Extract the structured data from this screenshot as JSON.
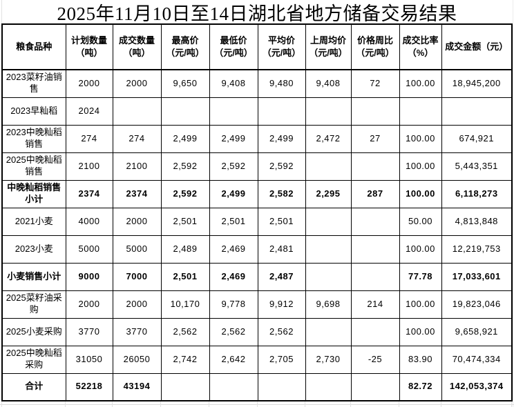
{
  "title": "2025年11月10日至14日湖北省地方储备交易结果",
  "colors": {
    "text": "#000000",
    "table_border": "#000000",
    "background": "#ffffff",
    "sheet_gridline": "#dcdcdc"
  },
  "table": {
    "headers": [
      {
        "key": "grain-type",
        "line1": "粮食品种",
        "line2": ""
      },
      {
        "key": "planned-qty",
        "line1": "计划数量",
        "line2": "（吨）"
      },
      {
        "key": "deal-qty",
        "line1": "成交数量",
        "line2": "（吨）"
      },
      {
        "key": "max-price",
        "line1": "最高价",
        "line2": "（元/吨）"
      },
      {
        "key": "min-price",
        "line1": "最低价",
        "line2": "（元/吨）"
      },
      {
        "key": "avg-price",
        "line1": "平均价",
        "line2": "（元/吨）"
      },
      {
        "key": "last-week-avg-price",
        "line1": "上周均价",
        "line2": "（元/吨）"
      },
      {
        "key": "price-week-change",
        "line1": "价格周比",
        "line2": "（元/吨）"
      },
      {
        "key": "deal-ratio",
        "line1": "成交比率",
        "line2": "（%）"
      },
      {
        "key": "deal-amount",
        "line1": "成交金额（元）",
        "line2": ""
      }
    ],
    "rows": [
      {
        "bold": false,
        "cells": [
          "2023菜籽油销售",
          "2000",
          "2000",
          "9,650",
          "9,408",
          "9,480",
          "9,408",
          "72",
          "100.00",
          "18,945,200"
        ]
      },
      {
        "bold": false,
        "cells": [
          "2023早籼稻",
          "2024",
          "",
          "",
          "",
          "",
          "",
          "",
          "",
          ""
        ]
      },
      {
        "bold": false,
        "cells": [
          "2023中晚籼稻销售",
          "274",
          "274",
          "2,499",
          "2,499",
          "2,499",
          "2,472",
          "27",
          "100.00",
          "674,921"
        ]
      },
      {
        "bold": false,
        "cells": [
          "2025中晚籼稻销售",
          "2100",
          "2100",
          "2,592",
          "2,592",
          "2,592",
          "",
          "",
          "100.00",
          "5,443,351"
        ]
      },
      {
        "bold": true,
        "cells": [
          "中晚籼稻销售小计",
          "2374",
          "2374",
          "2,592",
          "2,499",
          "2,582",
          "2,295",
          "287",
          "100.00",
          "6,118,273"
        ]
      },
      {
        "bold": false,
        "cells": [
          "2021小麦",
          "4000",
          "2000",
          "2,501",
          "2,501",
          "2,501",
          "",
          "",
          "50.00",
          "4,813,848"
        ]
      },
      {
        "bold": false,
        "cells": [
          "2023小麦",
          "5000",
          "5000",
          "2,489",
          "2,469",
          "2,481",
          "",
          "",
          "100.00",
          "12,219,753"
        ]
      },
      {
        "bold": true,
        "cells": [
          "小麦销售小计",
          "9000",
          "7000",
          "2,501",
          "2,469",
          "2,487",
          "",
          "",
          "77.78",
          "17,033,601"
        ]
      },
      {
        "bold": false,
        "cells": [
          "2025菜籽油采购",
          "2000",
          "2000",
          "10,170",
          "9,778",
          "9,912",
          "9,698",
          "214",
          "100.00",
          "19,823,046"
        ]
      },
      {
        "bold": false,
        "cells": [
          "2025小麦采购",
          "3770",
          "3770",
          "2,562",
          "2,562",
          "2,562",
          "",
          "",
          "100.00",
          "9,658,921"
        ]
      },
      {
        "bold": false,
        "cells": [
          "2025中晚籼稻采购",
          "31050",
          "26050",
          "2,742",
          "2,642",
          "2,705",
          "2,730",
          "-25",
          "83.90",
          "70,474,334"
        ]
      },
      {
        "bold": true,
        "cells": [
          "合计",
          "52218",
          "43194",
          "",
          "",
          "",
          "",
          "",
          "82.72",
          "142,053,374"
        ]
      }
    ]
  }
}
